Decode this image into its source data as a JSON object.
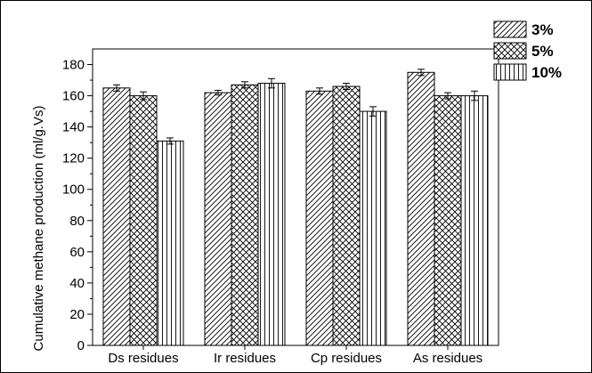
{
  "chart_data": {
    "type": "bar",
    "title": "",
    "xlabel": "",
    "ylabel": "Cumulative  methane production (ml/g.Vs)",
    "ylim": [
      0,
      190
    ],
    "yticks": [
      0,
      20,
      40,
      60,
      80,
      100,
      120,
      140,
      160,
      180
    ],
    "grid": false,
    "legend_position": "top-right",
    "categories": [
      "Ds residues",
      "Ir residues",
      "Cp residues",
      "As residues"
    ],
    "series": [
      {
        "name": "3%",
        "pattern": "diagonal-hatch",
        "values": [
          165,
          162,
          163,
          175
        ],
        "errors": [
          2,
          1.5,
          2,
          2
        ]
      },
      {
        "name": "5%",
        "pattern": "cross-hatch",
        "values": [
          160,
          167,
          166,
          160
        ],
        "errors": [
          2.5,
          2,
          2,
          2
        ]
      },
      {
        "name": "10%",
        "pattern": "vertical-hatch",
        "values": [
          131,
          168,
          150,
          160
        ],
        "errors": [
          2,
          3,
          3,
          3
        ]
      }
    ]
  }
}
